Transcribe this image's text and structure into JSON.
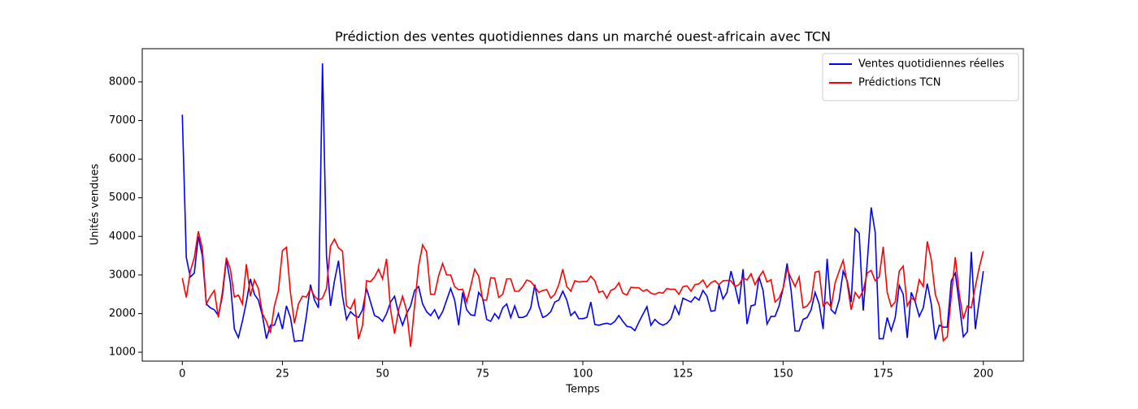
{
  "chart_data": {
    "type": "line",
    "title": "Prédiction des ventes quotidiennes dans un marché ouest-africain avec TCN",
    "xlabel": "Temps",
    "ylabel": "Unités vendues",
    "x": [
      0,
      1,
      2,
      3,
      4,
      5,
      6,
      7,
      8,
      9,
      10,
      11,
      12,
      13,
      14,
      15,
      16,
      17,
      18,
      19,
      20,
      21,
      22,
      23,
      24,
      25,
      26,
      27,
      28,
      29,
      30,
      31,
      32,
      33,
      34,
      35,
      36,
      37,
      38,
      39,
      40,
      41,
      42,
      43,
      44,
      45,
      46,
      47,
      48,
      49,
      50,
      51,
      52,
      53,
      54,
      55,
      56,
      57,
      58,
      59,
      60,
      61,
      62,
      63,
      64,
      65,
      66,
      67,
      68,
      69,
      70,
      71,
      72,
      73,
      74,
      75,
      76,
      77,
      78,
      79,
      80,
      81,
      82,
      83,
      84,
      85,
      86,
      87,
      88,
      89,
      90,
      91,
      92,
      93,
      94,
      95,
      96,
      97,
      98,
      99,
      100,
      101,
      102,
      103,
      104,
      105,
      106,
      107,
      108,
      109,
      110,
      111,
      112,
      113,
      114,
      115,
      116,
      117,
      118,
      119,
      120,
      121,
      122,
      123,
      124,
      125,
      126,
      127,
      128,
      129,
      130,
      131,
      132,
      133,
      134,
      135,
      136,
      137,
      138,
      139,
      140,
      141,
      142,
      143,
      144,
      145,
      146,
      147,
      148,
      149,
      150,
      151,
      152,
      153,
      154,
      155,
      156,
      157,
      158,
      159,
      160,
      161,
      162,
      163,
      164,
      165,
      166,
      167,
      168,
      169,
      170,
      171,
      172,
      173,
      174,
      175,
      176,
      177,
      178,
      179,
      180,
      181,
      182,
      183,
      184,
      185,
      186,
      187,
      188,
      189,
      190,
      191,
      192,
      193,
      194,
      195,
      196,
      197,
      198,
      199,
      200
    ],
    "series": [
      {
        "name": "Ventes quotidiennes réelles",
        "color": "#0000ff",
        "values": [
          7150,
          3450,
          2950,
          3050,
          4000,
          3500,
          2250,
          2150,
          2100,
          1950,
          2450,
          3400,
          2800,
          1600,
          1380,
          1800,
          2300,
          2900,
          2500,
          2350,
          1950,
          1350,
          1700,
          1700,
          2000,
          1600,
          2200,
          1900,
          1280,
          1300,
          1300,
          1950,
          2750,
          2350,
          2150,
          8480,
          3500,
          2200,
          2850,
          3370,
          2450,
          1850,
          2050,
          1950,
          1900,
          2100,
          2650,
          2300,
          1950,
          1900,
          1800,
          2000,
          2300,
          2450,
          2000,
          1700,
          2000,
          2200,
          2600,
          2700,
          2250,
          2050,
          1950,
          2100,
          1870,
          2050,
          2350,
          2650,
          2350,
          1700,
          2550,
          2100,
          1970,
          1950,
          2550,
          2400,
          1850,
          1800,
          2000,
          1870,
          2150,
          2250,
          1900,
          2200,
          1900,
          1900,
          1950,
          2150,
          2750,
          2200,
          1900,
          1950,
          2050,
          2300,
          2350,
          2580,
          2350,
          1950,
          2050,
          1870,
          1870,
          1900,
          2300,
          1720,
          1700,
          1730,
          1750,
          1720,
          1800,
          1950,
          1800,
          1670,
          1650,
          1560,
          1780,
          1980,
          2180,
          1700,
          1850,
          1750,
          1700,
          1750,
          1870,
          2200,
          1980,
          2400,
          2350,
          2300,
          2430,
          2350,
          2600,
          2450,
          2060,
          2080,
          2750,
          2380,
          2550,
          3100,
          2700,
          2250,
          3150,
          1730,
          2200,
          2230,
          2950,
          2600,
          1730,
          1930,
          1930,
          2200,
          2650,
          3300,
          2600,
          1550,
          1550,
          1850,
          1900,
          2100,
          2550,
          2250,
          1600,
          3420,
          2100,
          2000,
          2350,
          3100,
          2850,
          2300,
          4200,
          4080,
          2080,
          3300,
          4750,
          4100,
          1350,
          1350,
          1900,
          1560,
          1900,
          2730,
          2500,
          1370,
          2550,
          2300,
          1930,
          2150,
          2780,
          2250,
          1330,
          1700,
          1650,
          1650,
          2850,
          3050,
          2250,
          1400,
          1530,
          3600,
          1600,
          2350,
          3100
        ]
      },
      {
        "name": "Prédictions TCN",
        "color": "#ff0000",
        "values": [
          2920,
          2420,
          3100,
          3450,
          4130,
          3700,
          2250,
          2450,
          2600,
          1900,
          2550,
          3450,
          3150,
          2430,
          2480,
          2250,
          3280,
          2450,
          2870,
          2650,
          2000,
          1800,
          1500,
          2200,
          2600,
          3630,
          3720,
          2550,
          1750,
          2250,
          2450,
          2430,
          2650,
          2450,
          2350,
          2400,
          2650,
          3750,
          3930,
          3700,
          3620,
          2200,
          2120,
          2350,
          1340,
          1700,
          2850,
          2830,
          2950,
          3150,
          2900,
          3420,
          2100,
          1480,
          2100,
          2450,
          2080,
          1140,
          2200,
          3230,
          3780,
          3600,
          2500,
          2500,
          2980,
          3300,
          3000,
          3000,
          2700,
          2620,
          2630,
          2300,
          2700,
          3150,
          2970,
          2350,
          2350,
          2930,
          2920,
          2420,
          2500,
          2900,
          2900,
          2580,
          2580,
          2700,
          2870,
          2830,
          2700,
          2550,
          2600,
          2620,
          2400,
          2500,
          2750,
          3150,
          2700,
          2580,
          2850,
          2820,
          2830,
          2830,
          2970,
          2850,
          2550,
          2580,
          2400,
          2600,
          2650,
          2800,
          2530,
          2480,
          2680,
          2670,
          2670,
          2580,
          2620,
          2530,
          2500,
          2550,
          2530,
          2650,
          2630,
          2630,
          2500,
          2700,
          2720,
          2580,
          2750,
          2770,
          2870,
          2680,
          2800,
          2850,
          2750,
          2850,
          2860,
          2850,
          2700,
          2750,
          2930,
          2870,
          3030,
          2750,
          2950,
          3100,
          2820,
          2880,
          2300,
          2400,
          2650,
          3150,
          2920,
          2700,
          2950,
          2150,
          2200,
          2350,
          3070,
          3100,
          2200,
          2300,
          2170,
          2800,
          3100,
          3380,
          2800,
          2100,
          2550,
          2400,
          2600,
          3050,
          3120,
          2850,
          2950,
          3730,
          2550,
          2180,
          2300,
          3100,
          3230,
          2200,
          2400,
          2350,
          2880,
          2700,
          3870,
          3400,
          2500,
          2200,
          1300,
          1400,
          2450,
          3460,
          2500,
          1860,
          2200,
          2150,
          2700,
          3200,
          3620
        ]
      }
    ],
    "xlim": [
      -10,
      210
    ],
    "xticks": [
      0,
      25,
      50,
      75,
      100,
      125,
      150,
      175,
      200
    ],
    "ylim": [
      770,
      8860
    ],
    "yticks": [
      1000,
      2000,
      3000,
      4000,
      5000,
      6000,
      7000,
      8000
    ],
    "legend": "upper right",
    "grid": false
  }
}
